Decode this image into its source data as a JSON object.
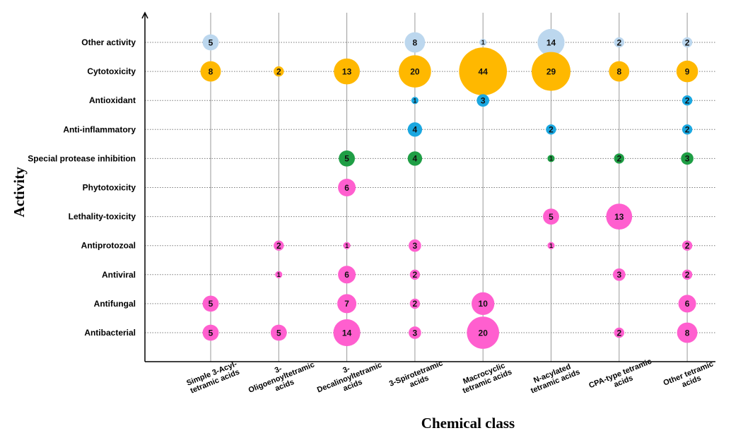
{
  "chart_data": {
    "type": "bubble",
    "title": "",
    "xlabel": "Chemical class",
    "ylabel": "Activity",
    "grid": true,
    "categories_x": [
      [
        "Simple 3-Acyl-",
        "tetramic acids"
      ],
      [
        "3-",
        "Oligoenoyltetramic",
        "acids"
      ],
      [
        "3-",
        "Decalinoyltetramic",
        "acids"
      ],
      [
        "3-Spirotetramic",
        "acids"
      ],
      [
        "Macrocyclic",
        "tetramic acids"
      ],
      [
        "N-acylated",
        "tetramic acids"
      ],
      [
        "CPA-type tetramic",
        "acids"
      ],
      [
        "Other tetramic",
        "acids"
      ]
    ],
    "categories_y": [
      "Other  activity",
      "Cytotoxicity",
      "Antioxidant",
      "Anti-inflammatory",
      "Special  protease inhibition",
      "Phytotoxicity",
      "Lethality-toxicity",
      "Antiprotozoal",
      "Antiviral",
      "Antifungal",
      "Antibacterial"
    ],
    "colors": {
      "Other  activity": "#bcd7ee",
      "Cytotoxicity": "#ffb800",
      "Antioxidant": "#1aa7e0",
      "Anti-inflammatory": "#1aa7e0",
      "Special  protease inhibition": "#1f9e45",
      "Phytotoxicity": "#ff5fcf",
      "Lethality-toxicity": "#ff5fcf",
      "Antiprotozoal": "#ff5fcf",
      "Antiviral": "#ff5fcf",
      "Antifungal": "#ff5fcf",
      "Antibacterial": "#ff5fcf"
    },
    "points": [
      {
        "x": 0,
        "y": "Other  activity",
        "value": 5
      },
      {
        "x": 3,
        "y": "Other  activity",
        "value": 8
      },
      {
        "x": 4,
        "y": "Other  activity",
        "value": 1
      },
      {
        "x": 5,
        "y": "Other  activity",
        "value": 14
      },
      {
        "x": 6,
        "y": "Other  activity",
        "value": 2
      },
      {
        "x": 7,
        "y": "Other  activity",
        "value": 2
      },
      {
        "x": 0,
        "y": "Cytotoxicity",
        "value": 8
      },
      {
        "x": 1,
        "y": "Cytotoxicity",
        "value": 2
      },
      {
        "x": 2,
        "y": "Cytotoxicity",
        "value": 13
      },
      {
        "x": 3,
        "y": "Cytotoxicity",
        "value": 20
      },
      {
        "x": 4,
        "y": "Cytotoxicity",
        "value": 44
      },
      {
        "x": 5,
        "y": "Cytotoxicity",
        "value": 29
      },
      {
        "x": 6,
        "y": "Cytotoxicity",
        "value": 8
      },
      {
        "x": 7,
        "y": "Cytotoxicity",
        "value": 9
      },
      {
        "x": 3,
        "y": "Antioxidant",
        "value": 1
      },
      {
        "x": 4,
        "y": "Antioxidant",
        "value": 3
      },
      {
        "x": 7,
        "y": "Antioxidant",
        "value": 2
      },
      {
        "x": 3,
        "y": "Anti-inflammatory",
        "value": 4
      },
      {
        "x": 5,
        "y": "Anti-inflammatory",
        "value": 2
      },
      {
        "x": 7,
        "y": "Anti-inflammatory",
        "value": 2
      },
      {
        "x": 2,
        "y": "Special  protease inhibition",
        "value": 5
      },
      {
        "x": 3,
        "y": "Special  protease inhibition",
        "value": 4
      },
      {
        "x": 5,
        "y": "Special  protease inhibition",
        "value": 1
      },
      {
        "x": 6,
        "y": "Special  protease inhibition",
        "value": 2
      },
      {
        "x": 7,
        "y": "Special  protease inhibition",
        "value": 3
      },
      {
        "x": 2,
        "y": "Phytotoxicity",
        "value": 6
      },
      {
        "x": 5,
        "y": "Lethality-toxicity",
        "value": 5
      },
      {
        "x": 6,
        "y": "Lethality-toxicity",
        "value": 13
      },
      {
        "x": 1,
        "y": "Antiprotozoal",
        "value": 2
      },
      {
        "x": 2,
        "y": "Antiprotozoal",
        "value": 1
      },
      {
        "x": 3,
        "y": "Antiprotozoal",
        "value": 3
      },
      {
        "x": 5,
        "y": "Antiprotozoal",
        "value": 1
      },
      {
        "x": 7,
        "y": "Antiprotozoal",
        "value": 2
      },
      {
        "x": 1,
        "y": "Antiviral",
        "value": 1
      },
      {
        "x": 2,
        "y": "Antiviral",
        "value": 6
      },
      {
        "x": 3,
        "y": "Antiviral",
        "value": 2
      },
      {
        "x": 6,
        "y": "Antiviral",
        "value": 3
      },
      {
        "x": 7,
        "y": "Antiviral",
        "value": 2
      },
      {
        "x": 0,
        "y": "Antifungal",
        "value": 5
      },
      {
        "x": 2,
        "y": "Antifungal",
        "value": 7
      },
      {
        "x": 3,
        "y": "Antifungal",
        "value": 2
      },
      {
        "x": 4,
        "y": "Antifungal",
        "value": 10
      },
      {
        "x": 7,
        "y": "Antifungal",
        "value": 6
      },
      {
        "x": 0,
        "y": "Antibacterial",
        "value": 5
      },
      {
        "x": 1,
        "y": "Antibacterial",
        "value": 5
      },
      {
        "x": 2,
        "y": "Antibacterial",
        "value": 14
      },
      {
        "x": 3,
        "y": "Antibacterial",
        "value": 3
      },
      {
        "x": 4,
        "y": "Antibacterial",
        "value": 20
      },
      {
        "x": 6,
        "y": "Antibacterial",
        "value": 2
      },
      {
        "x": 7,
        "y": "Antibacterial",
        "value": 8
      }
    ]
  }
}
